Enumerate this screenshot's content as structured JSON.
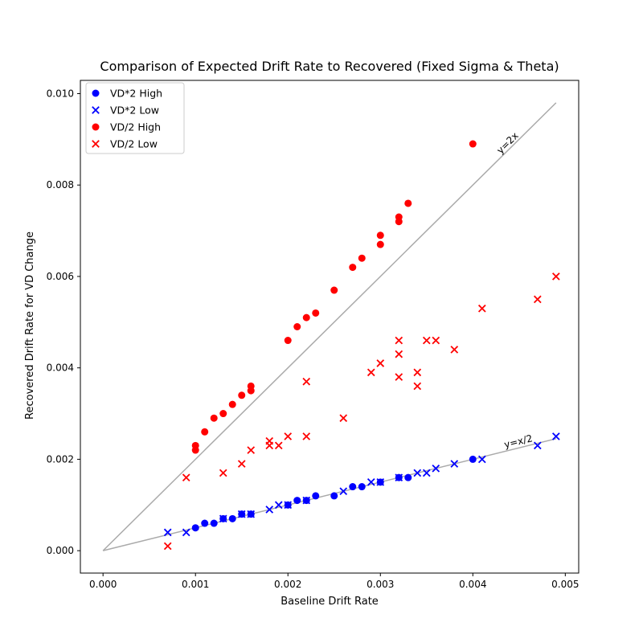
{
  "chart_data": {
    "type": "scatter",
    "title": "Comparison of Expected Drift Rate to Recovered (Fixed Sigma & Theta)",
    "xlabel": "Baseline Drift Rate",
    "ylabel": "Recovered Drift Rate for VD Change",
    "xlim": [
      -0.000245,
      0.005145
    ],
    "ylim": [
      -0.00049,
      0.01029
    ],
    "x_ticks": [
      0.0,
      0.001,
      0.002,
      0.003,
      0.004,
      0.005
    ],
    "x_tick_labels": [
      "0.000",
      "0.001",
      "0.002",
      "0.003",
      "0.004",
      "0.005"
    ],
    "y_ticks": [
      0.0,
      0.002,
      0.004,
      0.006,
      0.008,
      0.01
    ],
    "y_tick_labels": [
      "0.000",
      "0.002",
      "0.004",
      "0.006",
      "0.008",
      "0.010"
    ],
    "grid": false,
    "legend_position": "top-left",
    "reference_lines": [
      {
        "label": "y=2x",
        "color": "#aaaaaa",
        "x": [
          0.0,
          0.0049
        ],
        "y": [
          0.0,
          0.0098
        ]
      },
      {
        "label": "y=x/2",
        "color": "#aaaaaa",
        "x": [
          0.0,
          0.0049
        ],
        "y": [
          0.0,
          0.00245
        ]
      }
    ],
    "series": [
      {
        "name": "VD*2 High",
        "color": "#0000ff",
        "marker": "circle",
        "points": [
          [
            0.001,
            0.0005
          ],
          [
            0.0011,
            0.0006
          ],
          [
            0.0012,
            0.0006
          ],
          [
            0.0013,
            0.0007
          ],
          [
            0.0014,
            0.0007
          ],
          [
            0.0015,
            0.0008
          ],
          [
            0.0016,
            0.0008
          ],
          [
            0.002,
            0.001
          ],
          [
            0.0021,
            0.0011
          ],
          [
            0.0022,
            0.0011
          ],
          [
            0.0023,
            0.0012
          ],
          [
            0.0025,
            0.0012
          ],
          [
            0.0027,
            0.0014
          ],
          [
            0.0028,
            0.0014
          ],
          [
            0.003,
            0.0015
          ],
          [
            0.0032,
            0.0016
          ],
          [
            0.0033,
            0.0016
          ],
          [
            0.004,
            0.002
          ]
        ]
      },
      {
        "name": "VD*2 Low",
        "color": "#0000ff",
        "marker": "x",
        "points": [
          [
            0.0007,
            0.0004
          ],
          [
            0.0009,
            0.0004
          ],
          [
            0.0013,
            0.0007
          ],
          [
            0.0015,
            0.0008
          ],
          [
            0.0016,
            0.0008
          ],
          [
            0.0018,
            0.0009
          ],
          [
            0.0019,
            0.001
          ],
          [
            0.002,
            0.001
          ],
          [
            0.0022,
            0.0011
          ],
          [
            0.0026,
            0.0013
          ],
          [
            0.0029,
            0.0015
          ],
          [
            0.003,
            0.0015
          ],
          [
            0.0032,
            0.0016
          ],
          [
            0.0034,
            0.0017
          ],
          [
            0.0035,
            0.0017
          ],
          [
            0.0036,
            0.0018
          ],
          [
            0.0038,
            0.0019
          ],
          [
            0.0041,
            0.002
          ],
          [
            0.0047,
            0.0023
          ],
          [
            0.0049,
            0.0025
          ]
        ]
      },
      {
        "name": "VD/2 High",
        "color": "#ff0000",
        "marker": "circle",
        "points": [
          [
            0.001,
            0.0022
          ],
          [
            0.001,
            0.0023
          ],
          [
            0.0011,
            0.0026
          ],
          [
            0.0012,
            0.0029
          ],
          [
            0.0013,
            0.003
          ],
          [
            0.0014,
            0.0032
          ],
          [
            0.0015,
            0.0034
          ],
          [
            0.0016,
            0.0035
          ],
          [
            0.0016,
            0.0036
          ],
          [
            0.002,
            0.0046
          ],
          [
            0.0021,
            0.0049
          ],
          [
            0.0022,
            0.0051
          ],
          [
            0.0023,
            0.0052
          ],
          [
            0.0025,
            0.0057
          ],
          [
            0.0027,
            0.0062
          ],
          [
            0.0028,
            0.0064
          ],
          [
            0.003,
            0.0067
          ],
          [
            0.003,
            0.0069
          ],
          [
            0.0032,
            0.0072
          ],
          [
            0.0032,
            0.0073
          ],
          [
            0.0033,
            0.0076
          ],
          [
            0.004,
            0.0089
          ]
        ]
      },
      {
        "name": "VD/2 Low",
        "color": "#ff0000",
        "marker": "x",
        "points": [
          [
            0.0007,
            0.0001
          ],
          [
            0.0009,
            0.0016
          ],
          [
            0.0013,
            0.0017
          ],
          [
            0.0015,
            0.0019
          ],
          [
            0.0016,
            0.0022
          ],
          [
            0.0018,
            0.0023
          ],
          [
            0.0018,
            0.0024
          ],
          [
            0.0019,
            0.0023
          ],
          [
            0.002,
            0.0025
          ],
          [
            0.0022,
            0.0025
          ],
          [
            0.0022,
            0.0037
          ],
          [
            0.0026,
            0.0029
          ],
          [
            0.0029,
            0.0039
          ],
          [
            0.003,
            0.0041
          ],
          [
            0.0032,
            0.0038
          ],
          [
            0.0032,
            0.0043
          ],
          [
            0.0032,
            0.0046
          ],
          [
            0.0034,
            0.0036
          ],
          [
            0.0034,
            0.0039
          ],
          [
            0.0035,
            0.0046
          ],
          [
            0.0036,
            0.0046
          ],
          [
            0.0038,
            0.0044
          ],
          [
            0.0041,
            0.0053
          ],
          [
            0.0047,
            0.0055
          ],
          [
            0.0049,
            0.006
          ]
        ]
      }
    ]
  }
}
